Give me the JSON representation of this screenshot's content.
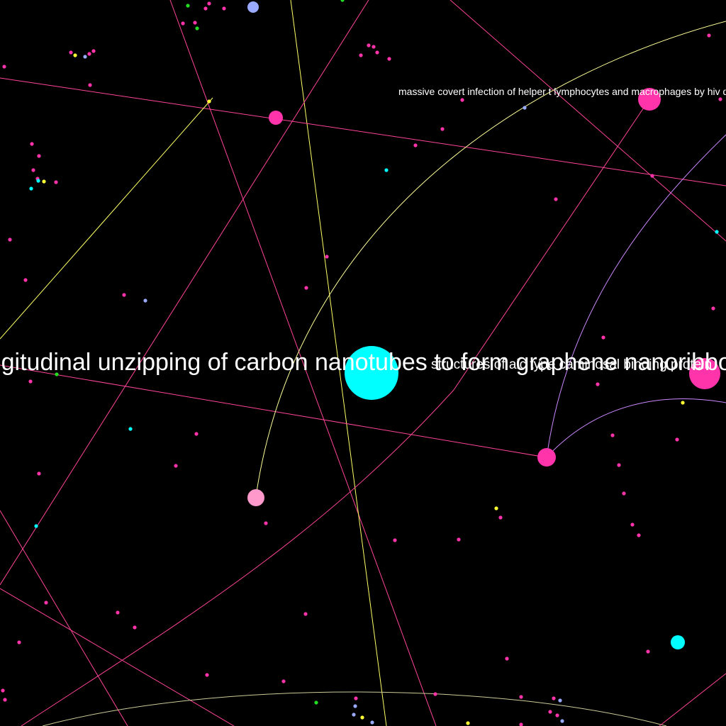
{
  "graph": {
    "background": "#000000",
    "labels": {
      "center": "longitudinal unzipping of carbon nanotubes to form graphene nanoribbons",
      "right": "structures of aic type caminosal binding protein",
      "top_right": "massive covert infection of helper t lymphocytes and macrophages by hiv during incubation period of aids"
    },
    "colors": {
      "magenta": "#ff33aa",
      "cyan": "#00ffff",
      "pink": "#ff99cc",
      "yellow": "#ffff33",
      "lavender": "#99aaff",
      "green": "#22dd22",
      "violet": "#cc88ff",
      "line_pink": "#ff4499",
      "line_yellow": "#ffff66",
      "line_gray": "#cccc99"
    }
  }
}
